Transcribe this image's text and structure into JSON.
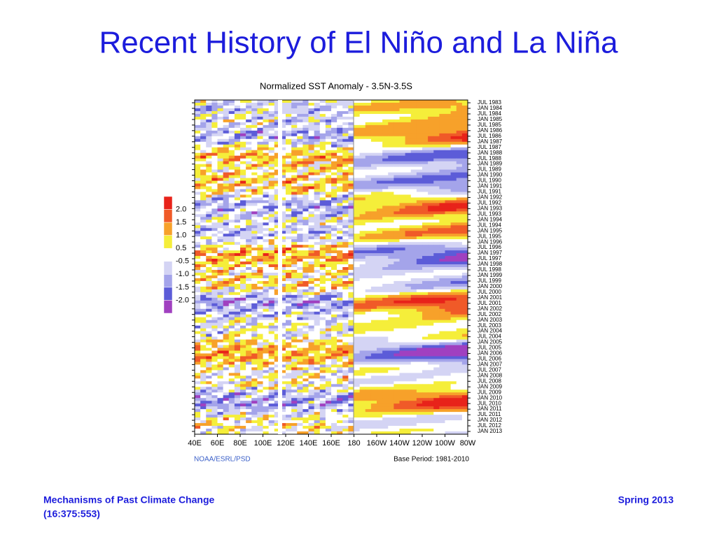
{
  "slide": {
    "title": "Recent History of El Niño and La Niña"
  },
  "figure": {
    "title": "Normalized SST Anomaly - 3.5N-3.5S",
    "colorbar_labels": [
      "2.0",
      "1.5",
      "1.0",
      "0.5",
      "-0.5",
      "-1.0",
      "-1.5",
      "-2.0"
    ],
    "colorbar_colors": [
      "#e8231a",
      "#f05a28",
      "#f7a12a",
      "#f5ee3a",
      "#ffffff",
      "#d4d4f4",
      "#a4a4ea",
      "#5c5cd8",
      "#a040c0"
    ],
    "x_labels": [
      "40E",
      "60E",
      "80E",
      "100E",
      "120E",
      "140E",
      "160E",
      "180",
      "160W",
      "140W",
      "120W",
      "100W",
      "80W"
    ],
    "y_labels": [
      "JUL 1983",
      "JAN 1984",
      "JUL 1984",
      "JAN 1985",
      "JUL 1985",
      "JAN 1986",
      "JUL 1986",
      "JAN 1987",
      "JUL 1987",
      "JAN 1988",
      "JUL 1988",
      "JAN 1989",
      "JUL 1989",
      "JAN 1990",
      "JUL 1990",
      "JAN 1991",
      "JUL 1991",
      "JAN 1992",
      "JUL 1992",
      "JAN 1993",
      "JUL 1993",
      "JAN 1994",
      "JUL 1994",
      "JAN 1995",
      "JUL 1995",
      "JAN 1996",
      "JUL 1996",
      "JAN 1997",
      "JUL 1997",
      "JAN 1998",
      "JUL 1998",
      "JAN 1999",
      "JUL 1999",
      "JAN 2000",
      "JUL 2000",
      "JAN 2001",
      "JUL 2001",
      "JAN 2002",
      "JUL 2002",
      "JAN 2003",
      "JUL 2003",
      "JAN 2004",
      "JUL 2004",
      "JAN 2005",
      "JUL 2005",
      "JAN 2006",
      "JUL 2006",
      "JAN 2007",
      "JUL 2007",
      "JAN 2008",
      "JUL 2008",
      "JAN 2009",
      "JUL 2009",
      "JAN 2010",
      "JUL 2010",
      "JAN 2011",
      "JUL 2011",
      "JAN 2012",
      "JUL 2012",
      "JAN 2013"
    ],
    "source": "NOAA/ESRL/PSD",
    "base_period": "Base Period: 1981-2010"
  },
  "footer": {
    "course": "Mechanisms of Past Climate Change",
    "code": "(16:375:553)",
    "term": "Spring 2013"
  }
}
